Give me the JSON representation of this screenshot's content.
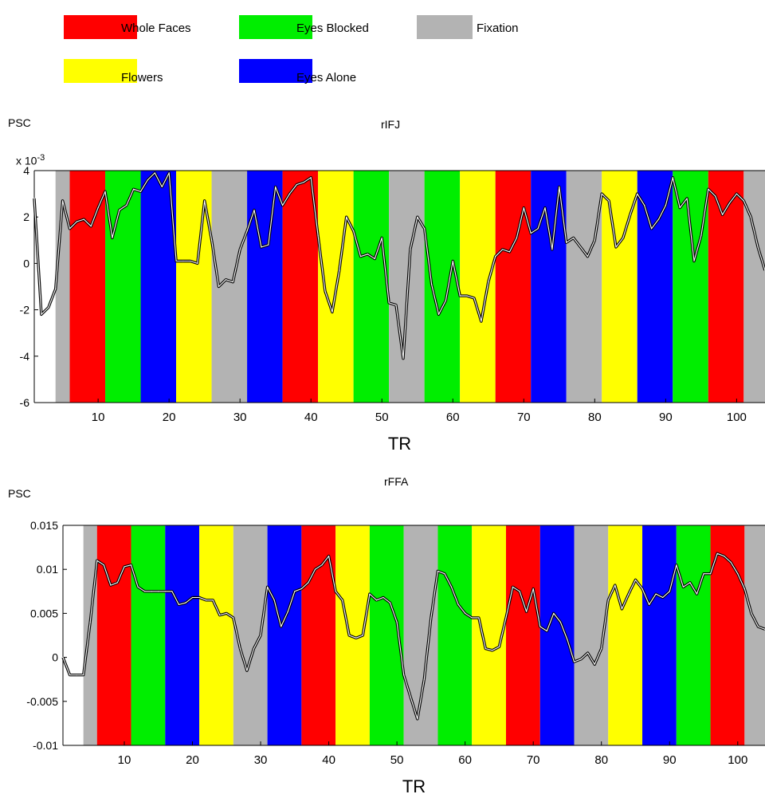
{
  "legend": [
    {
      "label": "Whole Faces",
      "color": "#ff0000"
    },
    {
      "label": "Eyes Blocked",
      "color": "#00ee00"
    },
    {
      "label": "Fixation",
      "color": "#b3b3b3"
    },
    {
      "label": "Flowers",
      "color": "#ffff00"
    },
    {
      "label": "Eyes Alone",
      "color": "#0000ff"
    }
  ],
  "chart_data": [
    {
      "type": "line",
      "title": "rIFJ",
      "ylabel": "PSC",
      "xlabel": "TR",
      "y_multiplier": "x 10",
      "y_multiplier_exp": "-3",
      "xlim": [
        1,
        104
      ],
      "ylim": [
        -6,
        4
      ],
      "xticks": [
        10,
        20,
        30,
        40,
        50,
        60,
        70,
        80,
        90,
        100
      ],
      "yticks": [
        -6,
        -4,
        -2,
        0,
        2,
        4
      ],
      "ytick_labels": [
        "-6",
        "-4",
        "-2",
        "0",
        "2",
        "4"
      ],
      "blocks": [
        {
          "start": 4,
          "end": 6,
          "condition": "Fixation"
        },
        {
          "start": 6,
          "end": 11,
          "condition": "Whole Faces"
        },
        {
          "start": 11,
          "end": 16,
          "condition": "Eyes Blocked"
        },
        {
          "start": 16,
          "end": 21,
          "condition": "Eyes Alone"
        },
        {
          "start": 21,
          "end": 26,
          "condition": "Flowers"
        },
        {
          "start": 26,
          "end": 31,
          "condition": "Fixation"
        },
        {
          "start": 31,
          "end": 36,
          "condition": "Eyes Alone"
        },
        {
          "start": 36,
          "end": 41,
          "condition": "Whole Faces"
        },
        {
          "start": 41,
          "end": 46,
          "condition": "Flowers"
        },
        {
          "start": 46,
          "end": 51,
          "condition": "Eyes Blocked"
        },
        {
          "start": 51,
          "end": 56,
          "condition": "Fixation"
        },
        {
          "start": 56,
          "end": 61,
          "condition": "Eyes Blocked"
        },
        {
          "start": 61,
          "end": 66,
          "condition": "Flowers"
        },
        {
          "start": 66,
          "end": 71,
          "condition": "Whole Faces"
        },
        {
          "start": 71,
          "end": 76,
          "condition": "Eyes Alone"
        },
        {
          "start": 76,
          "end": 81,
          "condition": "Fixation"
        },
        {
          "start": 81,
          "end": 86,
          "condition": "Flowers"
        },
        {
          "start": 86,
          "end": 91,
          "condition": "Eyes Alone"
        },
        {
          "start": 91,
          "end": 96,
          "condition": "Eyes Blocked"
        },
        {
          "start": 96,
          "end": 101,
          "condition": "Whole Faces"
        },
        {
          "start": 101,
          "end": 104,
          "condition": "Fixation"
        }
      ],
      "series": [
        {
          "x": [
            1,
            2,
            3,
            4,
            5,
            6,
            7,
            8,
            9,
            10,
            11,
            12,
            13,
            14,
            15,
            16,
            17,
            18,
            19,
            20,
            21,
            22,
            23,
            24,
            25,
            26,
            27,
            28,
            29,
            30,
            31,
            32,
            33,
            34,
            35,
            36,
            37,
            38,
            39,
            40,
            41,
            42,
            43,
            44,
            45,
            46,
            47,
            48,
            49,
            50,
            51,
            52,
            53,
            54,
            55,
            56,
            57,
            58,
            59,
            60,
            61,
            62,
            63,
            64,
            65,
            66,
            67,
            68,
            69,
            70,
            71,
            72,
            73,
            74,
            75,
            76,
            77,
            78,
            79,
            80,
            81,
            82,
            83,
            84,
            85,
            86,
            87,
            88,
            89,
            90,
            91,
            92,
            93,
            94,
            95,
            96,
            97,
            98,
            99,
            100,
            101,
            102,
            103,
            104
          ],
          "y": [
            2.8,
            -2.2,
            -1.9,
            -1.1,
            2.7,
            1.5,
            1.8,
            1.9,
            1.6,
            2.4,
            3.1,
            1.1,
            2.3,
            2.5,
            3.2,
            3.1,
            3.6,
            3.9,
            3.3,
            3.9,
            0.1,
            0.1,
            0.1,
            0.0,
            2.7,
            1.0,
            -1.0,
            -0.7,
            -0.8,
            0.6,
            1.4,
            2.3,
            0.7,
            0.8,
            3.3,
            2.5,
            3.0,
            3.4,
            3.5,
            3.7,
            1.2,
            -1.2,
            -2.1,
            -0.3,
            2.0,
            1.4,
            0.3,
            0.4,
            0.2,
            1.1,
            -1.7,
            -1.8,
            -4.1,
            0.6,
            2.0,
            1.5,
            -0.9,
            -2.2,
            -1.6,
            0.1,
            -1.4,
            -1.4,
            -1.5,
            -2.5,
            -0.8,
            0.3,
            0.6,
            0.5,
            1.1,
            2.4,
            1.3,
            1.5,
            2.4,
            0.6,
            3.3,
            0.9,
            1.1,
            0.7,
            0.3,
            1.0,
            3.0,
            2.7,
            0.7,
            1.1,
            2.1,
            3.0,
            2.5,
            1.5,
            1.9,
            2.5,
            3.7,
            2.4,
            2.8,
            0.1,
            1.2,
            3.2,
            2.9,
            2.1,
            2.6,
            3.0,
            2.7,
            2.0,
            0.7,
            -0.3
          ]
        }
      ]
    },
    {
      "type": "line",
      "title": "rFFA",
      "ylabel": "PSC",
      "xlabel": "TR",
      "xlim": [
        1,
        104
      ],
      "ylim": [
        -0.01,
        0.015
      ],
      "xticks": [
        10,
        20,
        30,
        40,
        50,
        60,
        70,
        80,
        90,
        100
      ],
      "yticks": [
        -0.01,
        -0.005,
        0,
        0.005,
        0.01,
        0.015
      ],
      "ytick_labels": [
        "-0.01",
        "-0.005",
        "0",
        "0.005",
        "0.01",
        "0.015"
      ],
      "blocks": [
        {
          "start": 4,
          "end": 6,
          "condition": "Fixation"
        },
        {
          "start": 6,
          "end": 11,
          "condition": "Whole Faces"
        },
        {
          "start": 11,
          "end": 16,
          "condition": "Eyes Blocked"
        },
        {
          "start": 16,
          "end": 21,
          "condition": "Eyes Alone"
        },
        {
          "start": 21,
          "end": 26,
          "condition": "Flowers"
        },
        {
          "start": 26,
          "end": 31,
          "condition": "Fixation"
        },
        {
          "start": 31,
          "end": 36,
          "condition": "Eyes Alone"
        },
        {
          "start": 36,
          "end": 41,
          "condition": "Whole Faces"
        },
        {
          "start": 41,
          "end": 46,
          "condition": "Flowers"
        },
        {
          "start": 46,
          "end": 51,
          "condition": "Eyes Blocked"
        },
        {
          "start": 51,
          "end": 56,
          "condition": "Fixation"
        },
        {
          "start": 56,
          "end": 61,
          "condition": "Eyes Blocked"
        },
        {
          "start": 61,
          "end": 66,
          "condition": "Flowers"
        },
        {
          "start": 66,
          "end": 71,
          "condition": "Whole Faces"
        },
        {
          "start": 71,
          "end": 76,
          "condition": "Eyes Alone"
        },
        {
          "start": 76,
          "end": 81,
          "condition": "Fixation"
        },
        {
          "start": 81,
          "end": 86,
          "condition": "Flowers"
        },
        {
          "start": 86,
          "end": 91,
          "condition": "Eyes Alone"
        },
        {
          "start": 91,
          "end": 96,
          "condition": "Eyes Blocked"
        },
        {
          "start": 96,
          "end": 101,
          "condition": "Whole Faces"
        },
        {
          "start": 101,
          "end": 104,
          "condition": "Fixation"
        }
      ],
      "series": [
        {
          "x": [
            1,
            2,
            3,
            4,
            5,
            6,
            7,
            8,
            9,
            10,
            11,
            12,
            13,
            14,
            15,
            16,
            17,
            18,
            19,
            20,
            21,
            22,
            23,
            24,
            25,
            26,
            27,
            28,
            29,
            30,
            31,
            32,
            33,
            34,
            35,
            36,
            37,
            38,
            39,
            40,
            41,
            42,
            43,
            44,
            45,
            46,
            47,
            48,
            49,
            50,
            51,
            52,
            53,
            54,
            55,
            56,
            57,
            58,
            59,
            60,
            61,
            62,
            63,
            64,
            65,
            66,
            67,
            68,
            69,
            70,
            71,
            72,
            73,
            74,
            75,
            76,
            77,
            78,
            79,
            80,
            81,
            82,
            83,
            84,
            85,
            86,
            87,
            88,
            89,
            90,
            91,
            92,
            93,
            94,
            95,
            96,
            97,
            98,
            99,
            100,
            101,
            102,
            103,
            104
          ],
          "y": [
            0.0,
            -0.002,
            -0.002,
            -0.002,
            0.004,
            0.011,
            0.0105,
            0.0082,
            0.0085,
            0.0103,
            0.0105,
            0.008,
            0.0075,
            0.0075,
            0.0075,
            0.0075,
            0.0075,
            0.006,
            0.0062,
            0.0068,
            0.0068,
            0.0065,
            0.0065,
            0.0048,
            0.005,
            0.0045,
            0.001,
            -0.0015,
            0.001,
            0.0025,
            0.008,
            0.0065,
            0.0035,
            0.0052,
            0.0075,
            0.0078,
            0.0085,
            0.01,
            0.0105,
            0.0115,
            0.0075,
            0.0065,
            0.0025,
            0.0022,
            0.0025,
            0.0072,
            0.0065,
            0.0068,
            0.0062,
            0.004,
            -0.002,
            -0.0045,
            -0.007,
            -0.0025,
            0.0045,
            0.0098,
            0.0095,
            0.008,
            0.006,
            0.005,
            0.0045,
            0.0045,
            0.001,
            0.0008,
            0.0012,
            0.0045,
            0.008,
            0.0075,
            0.0052,
            0.0078,
            0.0035,
            0.003,
            0.005,
            0.004,
            0.002,
            -0.0005,
            -0.0002,
            0.0005,
            -0.0008,
            0.001,
            0.0065,
            0.0082,
            0.0055,
            0.0072,
            0.0088,
            0.0078,
            0.006,
            0.0072,
            0.0068,
            0.0075,
            0.0105,
            0.008,
            0.0085,
            0.0072,
            0.0095,
            0.0095,
            0.0118,
            0.0115,
            0.0108,
            0.0095,
            0.0078,
            0.005,
            0.0035,
            0.0032
          ]
        }
      ]
    }
  ]
}
